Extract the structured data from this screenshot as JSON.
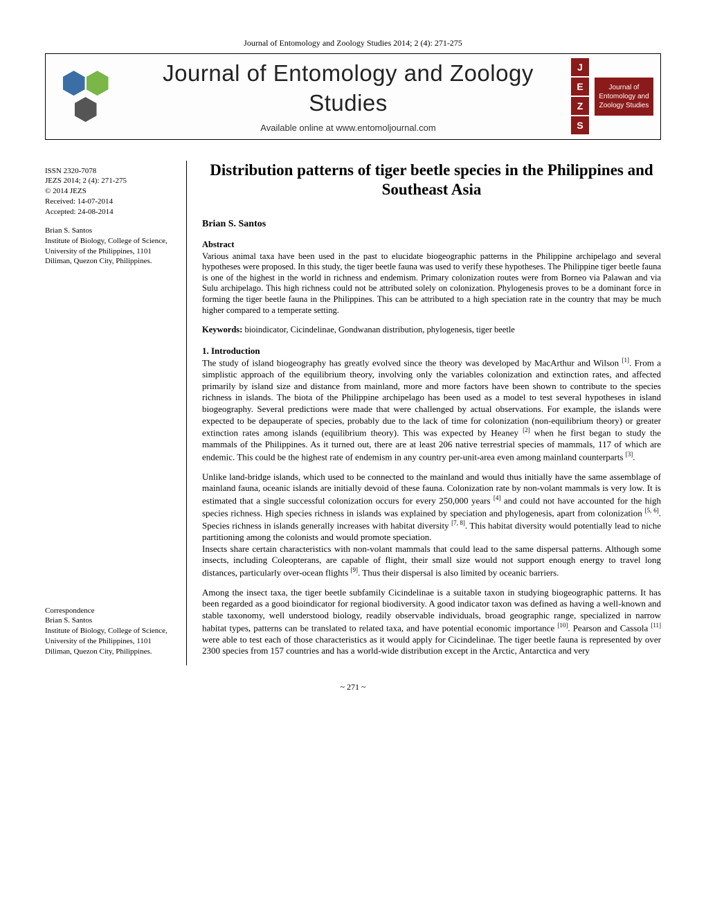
{
  "running_header": "Journal of Entomology and Zoology Studies 2014; 2 (4): 271-275",
  "banner": {
    "title": "Journal of Entomology and Zoology Studies",
    "subtitle": "Available online at www.entomoljournal.com",
    "jezs_letters": [
      "J",
      "E",
      "Z",
      "S"
    ],
    "jezs_caption": "Journal of Entomology and Zoology Studies"
  },
  "sidebar": {
    "issn": "ISSN 2320-7078",
    "citation": "JEZS 2014; 2 (4): 271-275",
    "copyright": "© 2014 JEZS",
    "received": "Received: 14-07-2014",
    "accepted": "Accepted: 24-08-2014",
    "author_name": "Brian S. Santos",
    "affiliation": "Institute of Biology, College of Science, University of the Philippines, 1101 Diliman, Quezon City, Philippines.",
    "corr_label": "Correspondence",
    "corr_name": "Brian S. Santos",
    "corr_affil": "Institute of Biology, College of Science, University of the Philippines, 1101 Diliman, Quezon City, Philippines."
  },
  "article": {
    "title": "Distribution patterns of tiger beetle species in the Philippines and Southeast Asia",
    "author": "Brian S. Santos",
    "abstract_label": "Abstract",
    "abstract": "Various animal taxa have been used in the past to elucidate biogeographic patterns in the Philippine archipelago and several hypotheses were proposed. In this study, the tiger beetle fauna was used to verify these hypotheses. The Philippine tiger beetle fauna is one of the highest in the world in richness and endemism. Primary colonization routes were from Borneo via Palawan and via Sulu archipelago. This high richness could not be attributed solely on colonization. Phylogenesis proves to be a dominant force in forming the tiger beetle fauna in the Philippines. This can be attributed to a high speciation rate in the country that may be much higher compared to a temperate setting.",
    "keywords_label": "Keywords:",
    "keywords": "bioindicator, Cicindelinae, Gondwanan distribution, phylogenesis, tiger beetle",
    "intro_heading": "1. Introduction",
    "page_number": "~ 271 ~"
  }
}
